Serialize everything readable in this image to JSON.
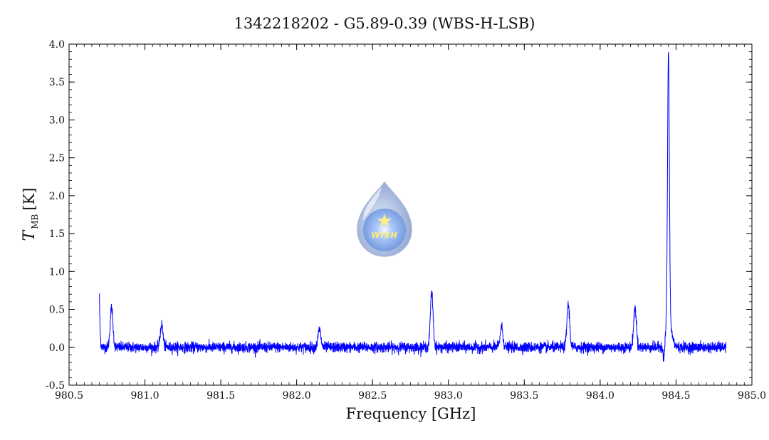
{
  "title": "1342218202 - G5.89-0.39 (WBS-H-LSB)",
  "logo": {
    "name": "WISH",
    "text": "WISH"
  },
  "chart_data": {
    "type": "line",
    "title": "1342218202 - G5.89-0.39 (WBS-H-LSB)",
    "xlabel": "Frequency [GHz]",
    "ylabel": {
      "symbol": "T",
      "subscript": "MB",
      "unit": "[K]"
    },
    "xlim": [
      980.5,
      985.0
    ],
    "ylim": [
      -0.5,
      4.0
    ],
    "x_ticks": [
      "980.5",
      "981.0",
      "981.5",
      "982.0",
      "982.5",
      "983.0",
      "983.5",
      "984.0",
      "984.5",
      "985.0"
    ],
    "y_ticks": [
      "-0.5",
      "0.0",
      "0.5",
      "1.0",
      "1.5",
      "2.0",
      "2.5",
      "3.0",
      "3.5",
      "4.0"
    ],
    "grid": false,
    "legend": "none",
    "line_color": "#0000ff",
    "series": [
      {
        "x_range": [
          980.7,
          984.83
        ],
        "baseline": 0.0,
        "noise_rms": 0.06,
        "features": [
          {
            "x": 980.7,
            "peak": 0.72,
            "type": "edge"
          },
          {
            "x": 980.78,
            "peak": 0.52
          },
          {
            "x": 981.11,
            "peak": 0.3
          },
          {
            "x": 982.15,
            "peak": 0.24
          },
          {
            "x": 982.89,
            "peak": 0.72
          },
          {
            "x": 983.35,
            "peak": 0.27
          },
          {
            "x": 983.79,
            "peak": 0.56
          },
          {
            "x": 984.23,
            "peak": 0.52
          },
          {
            "x": 984.42,
            "peak": -0.25
          },
          {
            "x": 984.45,
            "peak": 3.55
          }
        ]
      }
    ]
  }
}
